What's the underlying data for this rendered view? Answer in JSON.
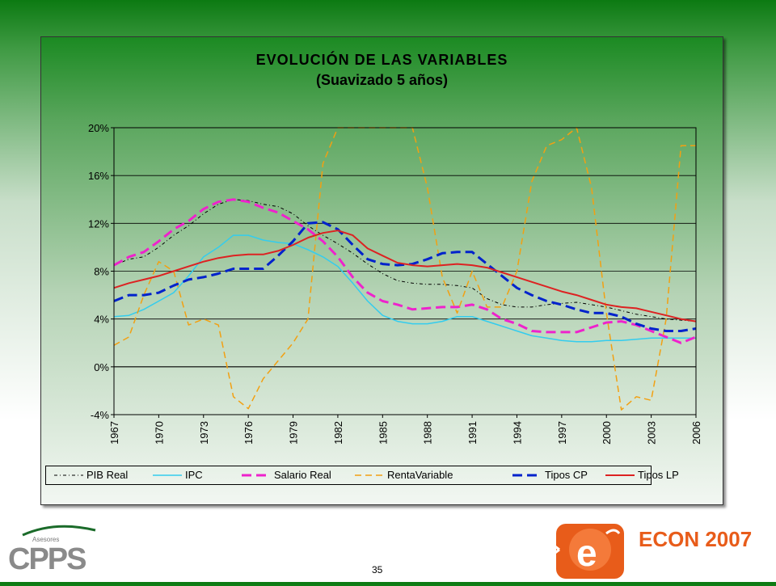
{
  "slide": {
    "page_number": "35",
    "colors": {
      "background_top": "#0c7a12",
      "panel_top": "#1b8a22"
    }
  },
  "logos": {
    "left": {
      "small_text": "Asesores",
      "big_text": "CPPS",
      "color": "#8a8a8a",
      "accent": "#1b6b2a"
    },
    "right": {
      "text": "ECON 2007",
      "text_color": "#e85c1a",
      "icon_color": "#e85c1a"
    }
  },
  "chart_data": {
    "type": "line",
    "title": "EVOLUCIÓN DE LAS VARIABLES",
    "subtitle": "(Suavizado 5 años)",
    "xlabel": "",
    "ylabel": "",
    "x": [
      1967,
      1968,
      1969,
      1970,
      1971,
      1972,
      1973,
      1974,
      1975,
      1976,
      1977,
      1978,
      1979,
      1980,
      1981,
      1982,
      1983,
      1984,
      1985,
      1986,
      1987,
      1988,
      1989,
      1990,
      1991,
      1992,
      1993,
      1994,
      1995,
      1996,
      1997,
      1998,
      1999,
      2000,
      2001,
      2002,
      2003,
      2004,
      2005,
      2006
    ],
    "x_tick_labels": [
      "1967",
      "1970",
      "1973",
      "1976",
      "1979",
      "1982",
      "1985",
      "1988",
      "1991",
      "1994",
      "1997",
      "2000",
      "2003",
      "2006"
    ],
    "ylim": [
      -4,
      20
    ],
    "y_ticks": [
      -4,
      0,
      4,
      8,
      12,
      16,
      20
    ],
    "y_tick_labels": [
      "-4%",
      "0%",
      "4%",
      "8%",
      "12%",
      "16%",
      "20%"
    ],
    "grid": "horizontal",
    "legend_position": "bottom",
    "series": [
      {
        "name": "PIB Real",
        "color": "#000000",
        "style": "dashdot",
        "width": 1,
        "values": [
          8.5,
          9.0,
          9.2,
          10.0,
          11.0,
          11.8,
          12.8,
          13.6,
          14.0,
          13.9,
          13.6,
          13.4,
          12.8,
          11.8,
          11.0,
          10.3,
          9.5,
          8.6,
          7.8,
          7.2,
          7.0,
          6.9,
          6.9,
          6.8,
          6.6,
          5.7,
          5.2,
          5.0,
          5.0,
          5.2,
          5.3,
          5.4,
          5.2,
          5.0,
          4.7,
          4.4,
          4.2,
          4.0,
          3.9,
          3.8
        ]
      },
      {
        "name": "IPC",
        "color": "#33ccee",
        "style": "solid",
        "width": 1.5,
        "values": [
          4.2,
          4.3,
          4.8,
          5.5,
          6.2,
          7.6,
          9.2,
          10.0,
          11.0,
          11.0,
          10.6,
          10.4,
          10.3,
          9.8,
          9.2,
          8.4,
          7.0,
          5.5,
          4.3,
          3.8,
          3.6,
          3.6,
          3.8,
          4.2,
          4.2,
          3.8,
          3.4,
          3.0,
          2.6,
          2.4,
          2.2,
          2.1,
          2.1,
          2.2,
          2.2,
          2.3,
          2.4,
          2.4,
          2.4,
          2.4
        ]
      },
      {
        "name": "Salario Real",
        "color": "#ee22cc",
        "style": "dashed",
        "width": 3,
        "values": [
          8.5,
          9.2,
          9.6,
          10.5,
          11.5,
          12.2,
          13.2,
          13.8,
          14.0,
          13.8,
          13.3,
          12.9,
          12.2,
          11.5,
          10.5,
          9.2,
          7.5,
          6.2,
          5.5,
          5.2,
          4.8,
          4.9,
          5.0,
          5.0,
          5.2,
          4.8,
          4.0,
          3.6,
          3.0,
          2.9,
          2.9,
          2.9,
          3.3,
          3.7,
          3.8,
          3.5,
          3.0,
          2.5,
          2.0,
          2.5
        ]
      },
      {
        "name": "RentaVariable",
        "color": "#f2a012",
        "style": "dashed",
        "width": 1.5,
        "values": [
          1.8,
          2.5,
          6.0,
          8.8,
          8.0,
          3.5,
          4.0,
          3.5,
          -2.5,
          -3.5,
          -1.0,
          0.5,
          2.0,
          4.0,
          17.0,
          20.2,
          20.5,
          20.5,
          20.5,
          20.5,
          20.5,
          15.0,
          7.5,
          4.5,
          8.0,
          5.0,
          5.0,
          8.0,
          15.5,
          18.5,
          19.0,
          20.5,
          15.0,
          4.5,
          -3.6,
          -2.5,
          -2.8,
          4.0,
          18.5,
          18.5
        ]
      },
      {
        "name": "Tipos CP",
        "color": "#0022cc",
        "style": "dashed",
        "width": 3,
        "values": [
          5.5,
          6.0,
          6.0,
          6.2,
          6.8,
          7.3,
          7.5,
          7.8,
          8.2,
          8.2,
          8.2,
          9.3,
          10.5,
          12.0,
          12.1,
          11.5,
          10.2,
          9.0,
          8.6,
          8.5,
          8.6,
          9.0,
          9.5,
          9.6,
          9.6,
          8.6,
          7.6,
          6.6,
          6.0,
          5.5,
          5.2,
          4.8,
          4.5,
          4.5,
          4.2,
          3.6,
          3.2,
          3.0,
          3.0,
          3.2
        ]
      },
      {
        "name": "Tipos LP",
        "color": "#dd2222",
        "style": "solid",
        "width": 2,
        "values": [
          6.6,
          7.0,
          7.3,
          7.6,
          8.0,
          8.4,
          8.8,
          9.1,
          9.3,
          9.4,
          9.4,
          9.7,
          10.2,
          10.8,
          11.2,
          11.4,
          11.0,
          9.9,
          9.3,
          8.7,
          8.5,
          8.4,
          8.5,
          8.6,
          8.5,
          8.3,
          7.9,
          7.5,
          7.1,
          6.7,
          6.3,
          6.0,
          5.6,
          5.2,
          5.0,
          4.9,
          4.6,
          4.3,
          4.0,
          3.8
        ]
      }
    ]
  }
}
